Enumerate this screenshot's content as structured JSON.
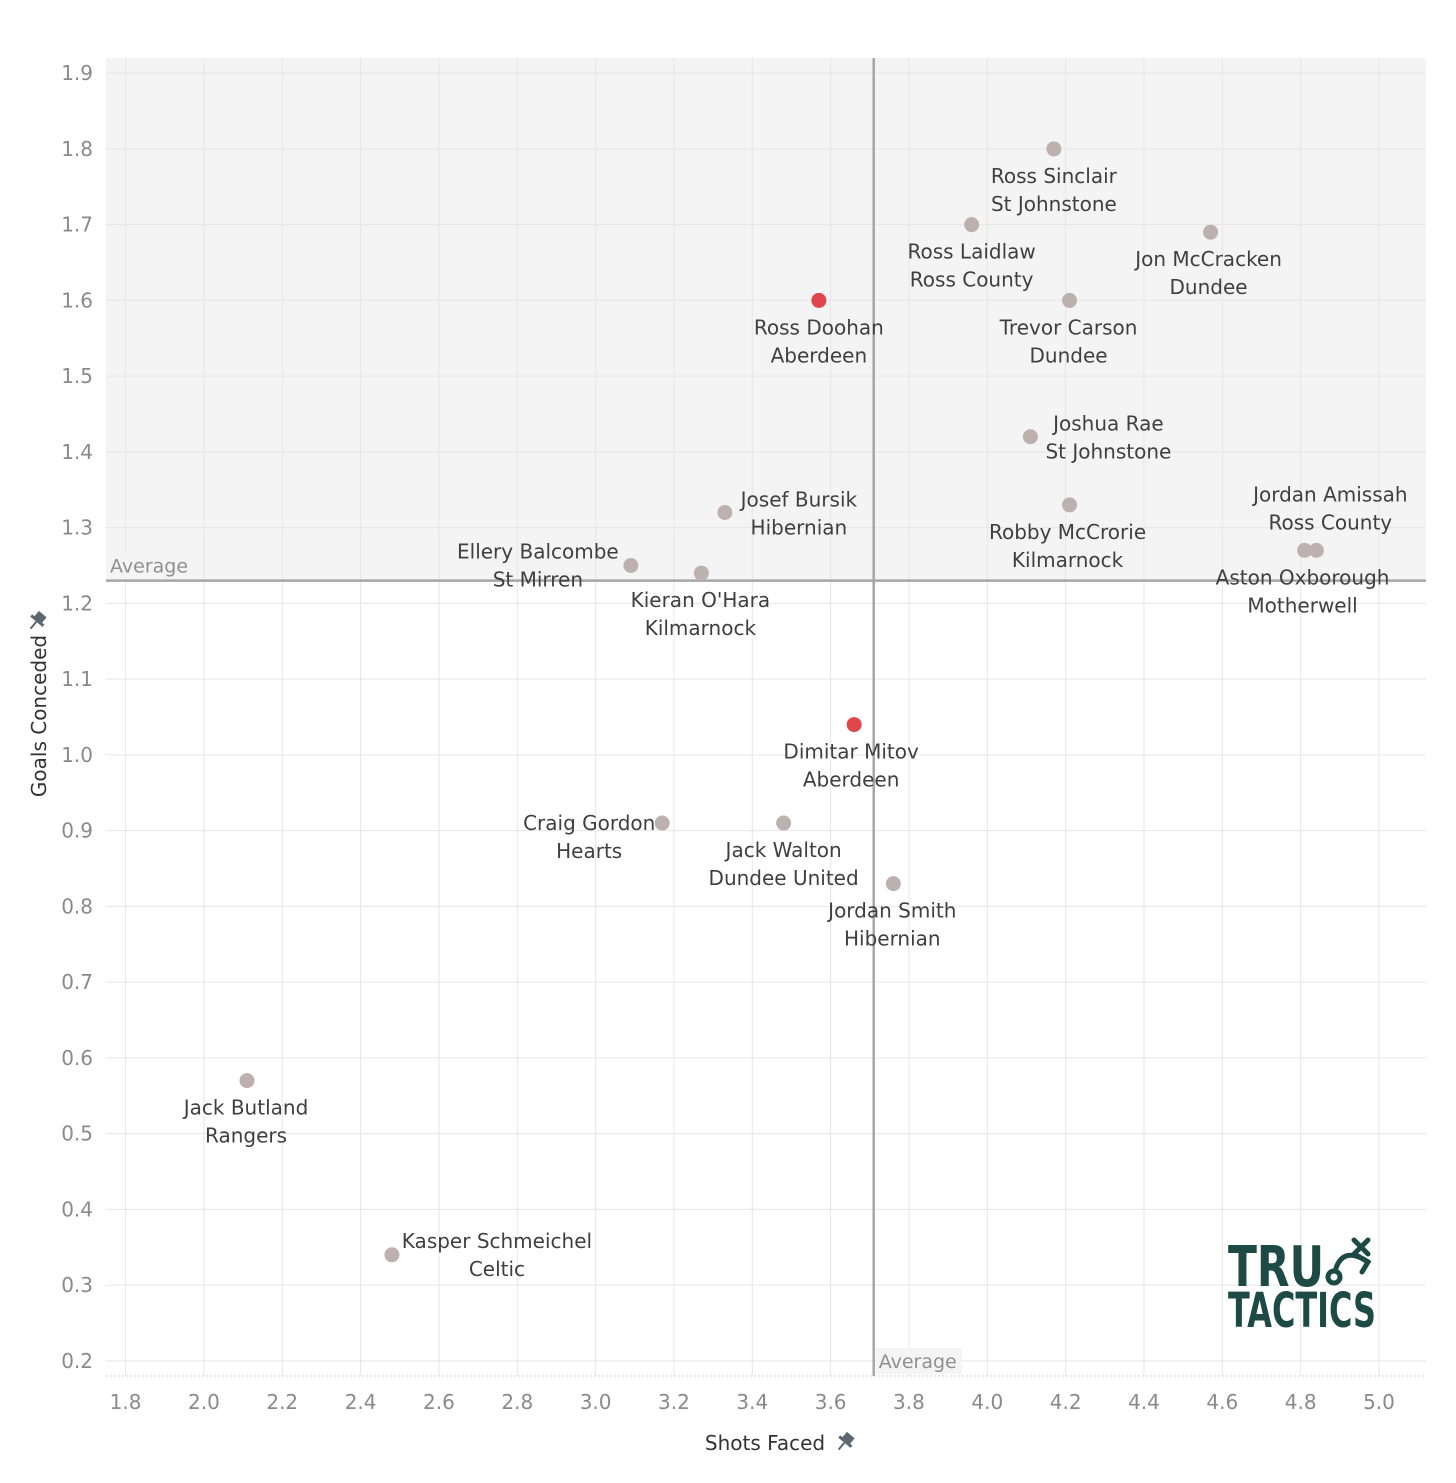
{
  "chart_data": {
    "type": "scatter",
    "xlabel": "Shots Faced",
    "ylabel": "Goals Conceded",
    "xlim": [
      1.75,
      5.12
    ],
    "ylim": [
      0.18,
      1.92
    ],
    "xticks": [
      "1.8",
      "2.0",
      "2.2",
      "2.4",
      "2.6",
      "2.8",
      "3.0",
      "3.2",
      "3.4",
      "3.6",
      "3.8",
      "4.0",
      "4.2",
      "4.4",
      "4.6",
      "4.8",
      "5.0"
    ],
    "yticks": [
      "0.2",
      "0.3",
      "0.4",
      "0.5",
      "0.6",
      "0.7",
      "0.8",
      "0.9",
      "1.0",
      "1.1",
      "1.2",
      "1.3",
      "1.4",
      "1.5",
      "1.6",
      "1.7",
      "1.8",
      "1.9"
    ],
    "average_x": 3.71,
    "average_y": 1.23,
    "average_label": "Average",
    "grid": true,
    "colors": {
      "default": "#bcb1ae",
      "highlight": "#e0474c",
      "average_line": "#a6a6a6",
      "upper_region": "#f4f4f4"
    },
    "points": [
      {
        "name": "Ross Sinclair",
        "team": "St Johnstone",
        "x": 4.17,
        "y": 1.8,
        "highlight": false
      },
      {
        "name": "Ross Laidlaw",
        "team": "Ross County",
        "x": 3.96,
        "y": 1.7,
        "highlight": false
      },
      {
        "name": "Jon McCracken",
        "team": "Dundee",
        "x": 4.57,
        "y": 1.69,
        "highlight": false
      },
      {
        "name": "Ross Doohan",
        "team": "Aberdeen",
        "x": 3.57,
        "y": 1.6,
        "highlight": true
      },
      {
        "name": "Trevor Carson",
        "team": "Dundee",
        "x": 4.21,
        "y": 1.6,
        "highlight": false
      },
      {
        "name": "Joshua Rae",
        "team": "St Johnstone",
        "x": 4.11,
        "y": 1.42,
        "highlight": false
      },
      {
        "name": "Josef Bursik",
        "team": "Hibernian",
        "x": 3.33,
        "y": 1.32,
        "highlight": false
      },
      {
        "name": "Robby McCrorie",
        "team": "Kilmarnock",
        "x": 4.21,
        "y": 1.33,
        "highlight": false
      },
      {
        "name": "Jordan Amissah",
        "team": "Ross County",
        "x": 4.84,
        "y": 1.27,
        "highlight": false
      },
      {
        "name": "Aston Oxborough",
        "team": "Motherwell",
        "x": 4.81,
        "y": 1.27,
        "highlight": false
      },
      {
        "name": "Ellery Balcombe",
        "team": "St Mirren",
        "x": 3.09,
        "y": 1.25,
        "highlight": false
      },
      {
        "name": "Kieran O'Hara",
        "team": "Kilmarnock",
        "x": 3.27,
        "y": 1.24,
        "highlight": false
      },
      {
        "name": "Dimitar Mitov",
        "team": "Aberdeen",
        "x": 3.66,
        "y": 1.04,
        "highlight": true
      },
      {
        "name": "Craig Gordon",
        "team": "Hearts",
        "x": 3.17,
        "y": 0.91,
        "highlight": false
      },
      {
        "name": "Jack Walton",
        "team": "Dundee United",
        "x": 3.48,
        "y": 0.91,
        "highlight": false
      },
      {
        "name": "Jordan Smith",
        "team": "Hibernian",
        "x": 3.76,
        "y": 0.83,
        "highlight": false
      },
      {
        "name": "Jack Butland",
        "team": "Rangers",
        "x": 2.11,
        "y": 0.57,
        "highlight": false
      },
      {
        "name": "Kasper Schmeichel",
        "team": "Celtic",
        "x": 2.48,
        "y": 0.34,
        "highlight": false
      }
    ]
  },
  "logo": {
    "line1": "TRU",
    "line2": "TACTICS",
    "icon": "tactics-play-icon"
  }
}
